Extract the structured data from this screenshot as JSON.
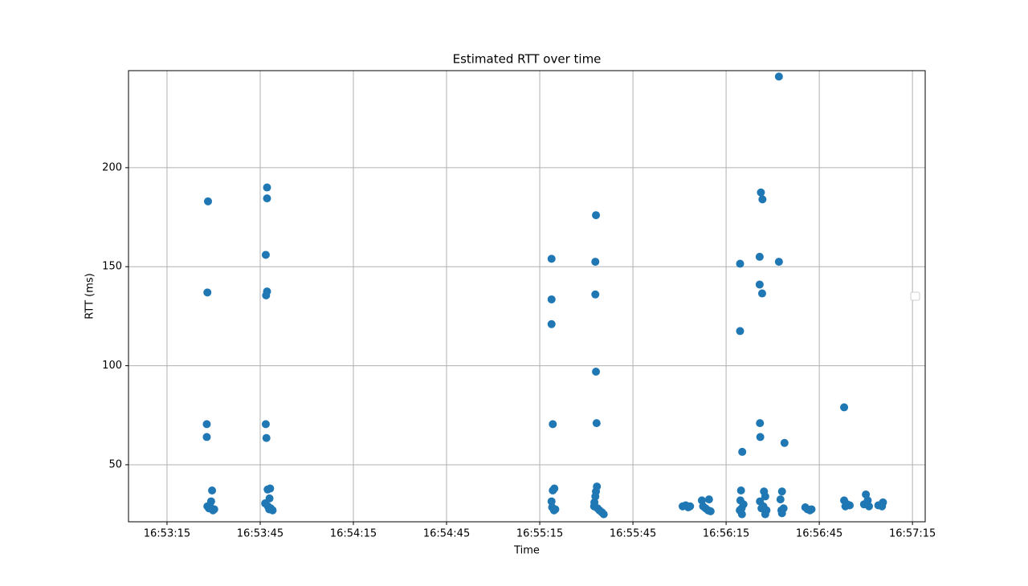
{
  "chart_data": {
    "type": "scatter",
    "title": "Estimated RTT over time",
    "xlabel": "Time",
    "ylabel": "RTT (ms)",
    "color": "#1f77b4",
    "grid": true,
    "xlim": [
      60782.6,
      61039.1
    ],
    "ylim": [
      21.2,
      249
    ],
    "xticks": [
      {
        "value": 60795,
        "label": "16:53:15"
      },
      {
        "value": 60825,
        "label": "16:53:45"
      },
      {
        "value": 60855,
        "label": "16:54:15"
      },
      {
        "value": 60885,
        "label": "16:54:45"
      },
      {
        "value": 60915,
        "label": "16:55:15"
      },
      {
        "value": 60945,
        "label": "16:55:45"
      },
      {
        "value": 60975,
        "label": "16:56:15"
      },
      {
        "value": 61005,
        "label": "16:56:45"
      },
      {
        "value": 61035,
        "label": "16:57:15"
      }
    ],
    "yticks": [
      50,
      100,
      150,
      200
    ],
    "x": [
      60808.2,
      60808.0,
      60807.8,
      60807.8,
      60809.5,
      60809.2,
      60808.0,
      60808.5,
      60809.8,
      60809.0,
      60810.2,
      60827.2,
      60827.2,
      60826.8,
      60827.2,
      60826.9,
      60826.8,
      60827.0,
      60828.2,
      60827.4,
      60828.0,
      60826.6,
      60827.5,
      60828.4,
      60829.0,
      60827.9,
      60918.8,
      60918.8,
      60918.8,
      60919.2,
      60919.7,
      60919.2,
      60918.8,
      60919.0,
      60920.0,
      60919.6,
      60933.1,
      60932.9,
      60932.9,
      60933.1,
      60933.3,
      60933.4,
      60933.1,
      60932.9,
      60932.6,
      60932.5,
      60933.6,
      60934.2,
      60935.0,
      60935.6,
      60961.0,
      60962.0,
      60962.8,
      60963.4,
      60967.2,
      60967.6,
      60968.4,
      60969.5,
      60969.2,
      60970.0,
      60979.5,
      60979.5,
      60980.2,
      60979.8,
      60979.6,
      60980.6,
      60980.0,
      60979.4,
      60980.1,
      60986.2,
      60986.7,
      60985.8,
      60985.8,
      60986.6,
      60985.9,
      60986.0,
      60987.2,
      60987.6,
      60985.9,
      60987.0,
      60986.4,
      60988.0,
      60987.6,
      60992.0,
      60992.0,
      60993.8,
      60993.0,
      60992.5,
      60993.5,
      60992.8,
      60993.0,
      61000.5,
      61001.2,
      61002.0,
      61002.5,
      61013.0,
      61013.0,
      61014.0,
      61013.4,
      61014.8,
      61019.4,
      61020.0,
      61020.6,
      61021.0,
      61024.0,
      61025.5,
      61025.2
    ],
    "values": [
      183,
      137,
      70.5,
      64,
      37,
      31.5,
      29,
      28,
      27,
      28.5,
      27.5,
      190,
      184.5,
      156,
      137.5,
      135.5,
      70.5,
      63.5,
      38,
      37.5,
      33,
      30.5,
      29,
      28,
      27,
      27.5,
      154,
      133.5,
      121,
      70.5,
      38,
      37,
      31.5,
      28.5,
      27.5,
      27,
      176,
      152.5,
      136,
      97,
      71,
      39,
      36.5,
      34,
      31,
      29,
      28,
      27,
      26,
      25,
      29,
      29.5,
      28.5,
      29,
      32,
      29,
      28,
      32.5,
      27,
      26.5,
      151.5,
      117.5,
      56.5,
      37,
      32,
      30,
      28,
      27,
      25,
      187.5,
      184,
      155,
      141,
      136.5,
      71,
      64,
      36.5,
      34,
      31.5,
      29,
      28,
      27,
      25,
      246,
      152.5,
      61,
      36.5,
      32.5,
      28,
      27,
      25.5,
      28.5,
      27.5,
      27,
      27.5,
      79,
      32,
      30,
      29,
      29.5,
      30,
      35,
      32,
      29,
      29.5,
      31,
      29
    ]
  }
}
